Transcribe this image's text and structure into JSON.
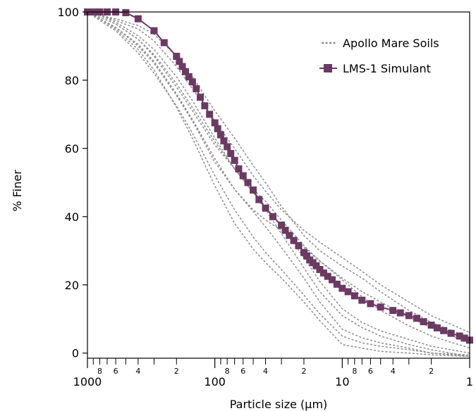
{
  "chart_data": {
    "type": "line",
    "xlabel": "Particle size (μm)",
    "ylabel": "% Finer",
    "x_scale": "log",
    "x_reversed": true,
    "xlim": [
      1000,
      1
    ],
    "ylim": [
      -1.5,
      100
    ],
    "x_major_ticks": [
      1000,
      100,
      10,
      1
    ],
    "x_major_tick_labels": [
      "1000",
      "100",
      "10",
      "1"
    ],
    "x_minor_tick_labels": [
      "8",
      "6",
      "4",
      "2"
    ],
    "y_ticks": [
      0,
      20,
      40,
      60,
      80,
      100
    ],
    "y_tick_labels": [
      "0",
      "20",
      "40",
      "60",
      "80",
      "100"
    ],
    "grid": false,
    "legend": {
      "position": "top-right",
      "entries": [
        "Apollo Mare Soils",
        "LMS-1 Simulant"
      ]
    },
    "colors": {
      "apollo": "#8c8c8c",
      "lms": "#6b3a63"
    },
    "series": [
      {
        "name": "LMS-1 Simulant",
        "style": "solid-square-markers",
        "x": [
          1000,
          900,
          800,
          700,
          600,
          500,
          400,
          300,
          250,
          200,
          190,
          180,
          170,
          160,
          150,
          140,
          130,
          120,
          110,
          100,
          95,
          90,
          85,
          80,
          75,
          70,
          65,
          60,
          55,
          50,
          45,
          40,
          35,
          30,
          28,
          26,
          24,
          22,
          20,
          19,
          18,
          17,
          16,
          15,
          14,
          13,
          12,
          11,
          10,
          9,
          8,
          7,
          6,
          5,
          4,
          3.5,
          3,
          2.6,
          2.3,
          2,
          1.8,
          1.6,
          1.4,
          1.2,
          1.1,
          1
        ],
        "y": [
          100,
          100,
          100,
          100,
          100,
          99.8,
          98,
          94.5,
          91,
          87,
          85.5,
          84,
          82.5,
          81,
          79.5,
          77.5,
          75,
          72.5,
          70,
          67.5,
          65.8,
          64,
          62.2,
          60.5,
          58.5,
          56.5,
          54,
          52,
          50,
          47.8,
          45,
          42.5,
          40,
          37.5,
          36,
          34.5,
          33,
          31.5,
          29.5,
          28.5,
          27.3,
          26.5,
          25.6,
          24.5,
          23.5,
          22.5,
          21.5,
          20.2,
          19,
          18,
          16.8,
          15.5,
          14.5,
          13.5,
          12.5,
          11.8,
          11,
          10.2,
          9.2,
          8.2,
          7.4,
          6.6,
          5.8,
          5.0,
          4.4,
          3.8
        ]
      },
      {
        "name": "Apollo Mare Soils",
        "style": "dotted",
        "x": [
          1000,
          800,
          600,
          400,
          300,
          200,
          150,
          100,
          70,
          50,
          40,
          30,
          20,
          15,
          10,
          7,
          5,
          3,
          2,
          1
        ],
        "y": [
          100,
          99,
          97.5,
          95,
          91.5,
          84,
          77.5,
          68,
          60,
          52,
          47.5,
          42,
          36,
          32.5,
          28,
          24,
          20,
          15,
          11,
          6
        ]
      },
      {
        "name": "Apollo Mare Soils",
        "style": "dotted",
        "x": [
          1000,
          800,
          600,
          400,
          300,
          200,
          150,
          100,
          70,
          50,
          40,
          30,
          20,
          15,
          10,
          7,
          5,
          3,
          2,
          1
        ],
        "y": [
          100,
          99,
          98,
          96,
          93.5,
          87,
          81,
          71,
          63,
          55,
          50,
          43,
          34.5,
          30,
          25.5,
          22,
          18,
          12.5,
          9,
          4.5
        ]
      },
      {
        "name": "Apollo Mare Soils",
        "style": "dotted",
        "x": [
          1000,
          800,
          600,
          400,
          300,
          200,
          150,
          100,
          70,
          50,
          40,
          30,
          20,
          15,
          10,
          7,
          5,
          3,
          2,
          1
        ],
        "y": [
          100,
          98.5,
          96.5,
          92,
          87,
          78,
          71,
          61,
          54,
          48,
          44.5,
          39,
          31.5,
          27,
          22,
          18,
          15,
          10.5,
          7.5,
          3
        ]
      },
      {
        "name": "Apollo Mare Soils",
        "style": "dotted",
        "x": [
          1000,
          800,
          600,
          400,
          300,
          200,
          150,
          100,
          70,
          50,
          40,
          30,
          20,
          15,
          10,
          7,
          5,
          3,
          2,
          1
        ],
        "y": [
          100,
          98,
          95.5,
          90,
          85,
          75.5,
          68,
          56,
          48,
          42,
          39,
          36,
          31,
          27,
          21.5,
          16.5,
          12.5,
          8,
          5,
          1.5
        ]
      },
      {
        "name": "Apollo Mare Soils",
        "style": "dotted",
        "x": [
          1000,
          800,
          600,
          400,
          300,
          200,
          150,
          100,
          70,
          50,
          40,
          30,
          20,
          15,
          10,
          7,
          5,
          3,
          2,
          1
        ],
        "y": [
          100,
          98.5,
          96.5,
          92,
          87.5,
          79,
          72,
          62,
          54,
          47,
          43,
          37,
          28,
          21,
          13,
          9,
          6.5,
          4,
          2,
          0
        ]
      },
      {
        "name": "Apollo Mare Soils",
        "style": "dotted",
        "x": [
          1000,
          800,
          600,
          400,
          300,
          200,
          150,
          100,
          70,
          50,
          40,
          30,
          20,
          15,
          10,
          7,
          5,
          3,
          2,
          1
        ],
        "y": [
          100,
          98,
          95.5,
          90.5,
          85.5,
          76,
          68.5,
          57,
          48,
          41.5,
          37,
          31,
          22,
          15,
          7,
          4.5,
          3,
          1.5,
          0,
          -1
        ]
      },
      {
        "name": "Apollo Mare Soils",
        "style": "dotted",
        "x": [
          1000,
          800,
          600,
          400,
          300,
          200,
          150,
          100,
          70,
          50,
          40,
          30,
          20,
          15,
          10,
          7,
          5,
          3,
          2,
          1
        ],
        "y": [
          100,
          97.5,
          94.5,
          88,
          82,
          72.5,
          64.5,
          52,
          42,
          34,
          29.5,
          24.5,
          17,
          11.5,
          5,
          3,
          2,
          1,
          0,
          -0.5
        ]
      },
      {
        "name": "Apollo Mare Soils",
        "style": "dotted",
        "x": [
          1000,
          800,
          600,
          400,
          300,
          200,
          150,
          100,
          70,
          50,
          40,
          30,
          20,
          15,
          10,
          7,
          5,
          3,
          2,
          1
        ],
        "y": [
          100,
          98,
          95,
          89,
          83,
          72,
          63,
          49,
          38,
          30.5,
          26.5,
          22,
          15,
          9.5,
          2.5,
          1.5,
          0.5,
          0,
          -0.5,
          -1
        ]
      },
      {
        "name": "Apollo Mare Soils",
        "style": "dotted",
        "x": [
          1000,
          800,
          600,
          400,
          300,
          200,
          150,
          100,
          70,
          50,
          40,
          30,
          20,
          15,
          10,
          7,
          5,
          3,
          2,
          1
        ],
        "y": [
          100,
          99,
          97,
          93,
          89,
          81,
          74,
          63,
          54,
          47,
          42,
          35,
          25,
          18,
          11,
          7.5,
          5,
          2.5,
          1,
          -1
        ]
      }
    ]
  }
}
